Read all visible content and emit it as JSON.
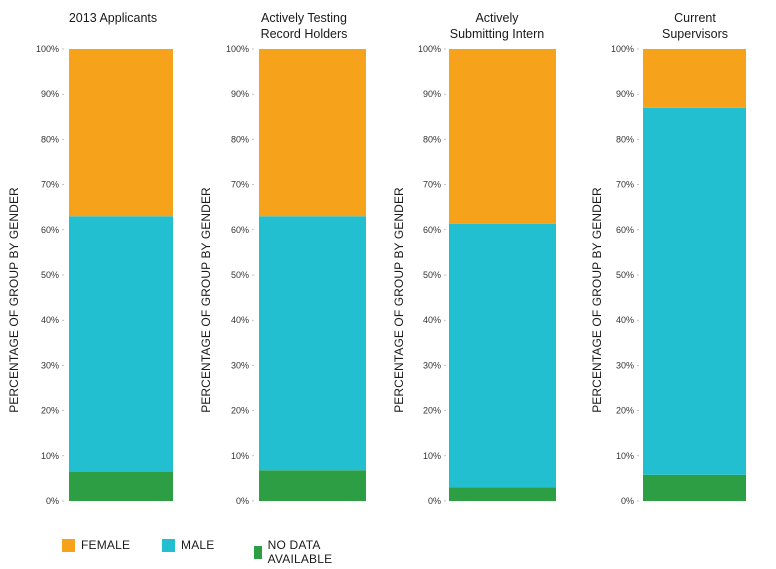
{
  "chart_data": [
    {
      "type": "bar",
      "title": "2013 Applicants",
      "ylabel": "PERCENTAGE OF GROUP BY GENDER",
      "ylim": [
        0,
        100
      ],
      "ticks": [
        "0%",
        "10%",
        "20%",
        "30%",
        "40%",
        "50%",
        "60%",
        "70%",
        "80%",
        "90%",
        "100%"
      ],
      "series": [
        {
          "name": "NO DATA AVAILABLE",
          "values": [
            6.5
          ]
        },
        {
          "name": "MALE",
          "values": [
            56.5
          ]
        },
        {
          "name": "FEMALE",
          "values": [
            37
          ]
        }
      ]
    },
    {
      "type": "bar",
      "title": "Actively Testing Record Holders",
      "ylabel": "PERCENTAGE OF GROUP BY GENDER",
      "ylim": [
        0,
        100
      ],
      "ticks": [
        "0%",
        "10%",
        "20%",
        "30%",
        "40%",
        "50%",
        "60%",
        "70%",
        "80%",
        "90%",
        "100%"
      ],
      "series": [
        {
          "name": "NO DATA AVAILABLE",
          "values": [
            6.8
          ]
        },
        {
          "name": "MALE",
          "values": [
            56.2
          ]
        },
        {
          "name": "FEMALE",
          "values": [
            37
          ]
        }
      ]
    },
    {
      "type": "bar",
      "title": "Actively Submitting Intern",
      "ylabel": "PERCENTAGE OF GROUP BY GENDER",
      "ylim": [
        0,
        100
      ],
      "ticks": [
        "0%",
        "10%",
        "20%",
        "30%",
        "40%",
        "50%",
        "60%",
        "70%",
        "80%",
        "90%",
        "100%"
      ],
      "series": [
        {
          "name": "NO DATA AVAILABLE",
          "values": [
            3
          ]
        },
        {
          "name": "MALE",
          "values": [
            58.3
          ]
        },
        {
          "name": "FEMALE",
          "values": [
            38.7
          ]
        }
      ]
    },
    {
      "type": "bar",
      "title": "Current Supervisors",
      "ylabel": "PERCENTAGE OF GROUP BY GENDER",
      "ylim": [
        0,
        100
      ],
      "ticks": [
        "0%",
        "10%",
        "20%",
        "30%",
        "40%",
        "50%",
        "60%",
        "70%",
        "80%",
        "90%",
        "100%"
      ],
      "series": [
        {
          "name": "NO DATA AVAILABLE",
          "values": [
            5.8
          ]
        },
        {
          "name": "MALE",
          "values": [
            81.2
          ]
        },
        {
          "name": "FEMALE",
          "values": [
            13
          ]
        }
      ]
    }
  ],
  "legend": {
    "items": [
      {
        "label": "FEMALE",
        "color": "#F7A21B"
      },
      {
        "label": "MALE",
        "color": "#22BFD0"
      },
      {
        "label": "NO DATA AVAILABLE",
        "color": "#2E9E45"
      }
    ]
  },
  "colors": {
    "FEMALE": "#F7A21B",
    "MALE": "#22BFD0",
    "NO DATA AVAILABLE": "#2E9E45"
  }
}
